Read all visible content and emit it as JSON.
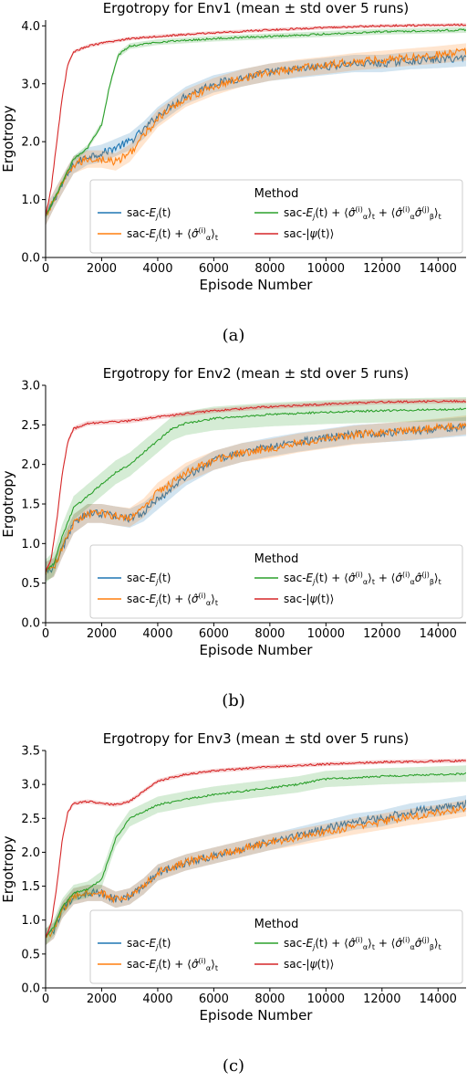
{
  "chart_data": [
    {
      "type": "line",
      "title": "Ergotropy for Env1 (mean ± std over 5 runs)",
      "xlabel": "Episode Number",
      "ylabel": "Ergotropy",
      "xlim": [
        0,
        15000
      ],
      "ylim": [
        0,
        4.1
      ],
      "xticks": [
        0,
        2000,
        4000,
        6000,
        8000,
        10000,
        12000,
        14000
      ],
      "yticks": [
        0.0,
        1.0,
        2.0,
        3.0,
        4.0
      ],
      "ytick_decimals": 1,
      "grid": false,
      "legend": {
        "title": "Method",
        "placement": "lower-right"
      },
      "caption": "(a)",
      "series": [
        {
          "name": "sac-$E_j(t)$",
          "label_main": "sac-",
          "label_sym": "E",
          "label_sub": "j",
          "label_rest": "(t)",
          "color": "#1f77b4",
          "x": [
            0,
            300,
            700,
            1000,
            1500,
            2000,
            2500,
            3000,
            3500,
            4000,
            5000,
            6000,
            7000,
            8000,
            9000,
            10000,
            11000,
            12000,
            13000,
            14000,
            15000
          ],
          "y": [
            0.7,
            1.0,
            1.35,
            1.6,
            1.75,
            1.8,
            1.9,
            2.0,
            2.2,
            2.45,
            2.8,
            3.0,
            3.1,
            3.2,
            3.25,
            3.3,
            3.35,
            3.35,
            3.4,
            3.42,
            3.45
          ],
          "band": 0.15
        },
        {
          "name": "sac-$E_j(t) + \\langle\\hat\\sigma_\\alpha^{(i)}\\rangle_t$",
          "color": "#ff7f0e",
          "x": [
            0,
            300,
            700,
            1000,
            1500,
            2000,
            2500,
            3000,
            3500,
            4000,
            5000,
            6000,
            7000,
            8000,
            9000,
            10000,
            11000,
            12000,
            13000,
            14000,
            15000
          ],
          "y": [
            0.7,
            1.0,
            1.35,
            1.6,
            1.7,
            1.7,
            1.65,
            1.8,
            2.1,
            2.4,
            2.75,
            2.95,
            3.1,
            3.2,
            3.27,
            3.32,
            3.38,
            3.42,
            3.46,
            3.5,
            3.55
          ],
          "band": 0.15
        },
        {
          "name": "sac-$E_j(t) + \\langle\\hat\\sigma_\\alpha^{(i)}\\rangle_t + \\langle\\hat\\sigma_\\alpha^{(i)}\\hat\\sigma_\\beta^{(j)}\\rangle_t$",
          "color": "#2ca02c",
          "x": [
            0,
            300,
            700,
            1000,
            1500,
            2000,
            2300,
            2600,
            3000,
            4000,
            5000,
            6000,
            8000,
            10000,
            12000,
            15000
          ],
          "y": [
            0.7,
            1.0,
            1.4,
            1.7,
            1.9,
            2.3,
            3.0,
            3.5,
            3.65,
            3.72,
            3.75,
            3.78,
            3.82,
            3.86,
            3.9,
            3.93
          ],
          "band": 0.05
        },
        {
          "name": "sac-$|\\psi(t)\\rangle$",
          "color": "#d62728",
          "x": [
            0,
            200,
            400,
            600,
            800,
            1000,
            1500,
            2000,
            3000,
            4000,
            6000,
            8000,
            10000,
            12000,
            15000
          ],
          "y": [
            0.7,
            1.2,
            2.0,
            2.8,
            3.35,
            3.55,
            3.65,
            3.7,
            3.78,
            3.82,
            3.88,
            3.93,
            3.97,
            4.0,
            4.02
          ],
          "band": 0.03
        }
      ]
    },
    {
      "type": "line",
      "title": "Ergotropy for Env2 (mean ± std over 5 runs)",
      "xlabel": "Episode Number",
      "ylabel": "Ergotropy",
      "xlim": [
        0,
        15000
      ],
      "ylim": [
        0,
        3.0
      ],
      "xticks": [
        0,
        2000,
        4000,
        6000,
        8000,
        10000,
        12000,
        14000
      ],
      "yticks": [
        0.0,
        0.5,
        1.0,
        1.5,
        2.0,
        2.5,
        3.0
      ],
      "ytick_decimals": 1,
      "grid": false,
      "legend": {
        "title": "Method",
        "placement": "lower-right"
      },
      "caption": "(b)",
      "series": [
        {
          "name": "sac-$E_j(t)$",
          "color": "#1f77b4",
          "x": [
            0,
            300,
            600,
            1000,
            1500,
            2000,
            2500,
            3000,
            3500,
            4000,
            5000,
            6000,
            7000,
            8000,
            9000,
            10000,
            11000,
            12000,
            13000,
            14000,
            15000
          ],
          "y": [
            0.65,
            0.7,
            0.95,
            1.25,
            1.38,
            1.38,
            1.35,
            1.32,
            1.4,
            1.55,
            1.85,
            2.05,
            2.15,
            2.22,
            2.28,
            2.33,
            2.38,
            2.4,
            2.42,
            2.45,
            2.48
          ],
          "band": 0.12
        },
        {
          "name": "sac-$E_j(t) + \\langle\\hat\\sigma_\\alpha^{(i)}\\rangle_t$",
          "color": "#ff7f0e",
          "x": [
            0,
            300,
            600,
            1000,
            1500,
            2000,
            2500,
            3000,
            3500,
            4000,
            5000,
            6000,
            7000,
            8000,
            9000,
            10000,
            11000,
            12000,
            13000,
            14000,
            15000
          ],
          "y": [
            0.65,
            0.7,
            0.95,
            1.25,
            1.38,
            1.38,
            1.35,
            1.33,
            1.45,
            1.65,
            1.9,
            2.05,
            2.15,
            2.2,
            2.27,
            2.32,
            2.37,
            2.4,
            2.43,
            2.46,
            2.5
          ],
          "band": 0.12
        },
        {
          "name": "sac-$E_j(t) + \\langle\\hat\\sigma_\\alpha^{(i)}\\rangle_t + \\langle\\hat\\sigma_\\alpha^{(i)}\\hat\\sigma_\\beta^{(j)}\\rangle_t$",
          "color": "#2ca02c",
          "x": [
            0,
            300,
            600,
            1000,
            1500,
            2000,
            2500,
            3000,
            3500,
            4000,
            4500,
            5000,
            6000,
            8000,
            10000,
            12000,
            15000
          ],
          "y": [
            0.65,
            0.75,
            1.1,
            1.45,
            1.6,
            1.75,
            1.9,
            2.0,
            2.15,
            2.3,
            2.45,
            2.52,
            2.58,
            2.63,
            2.66,
            2.68,
            2.7
          ],
          "band": 0.15
        },
        {
          "name": "sac-$|\\psi(t)\\rangle$",
          "color": "#d62728",
          "x": [
            0,
            200,
            400,
            600,
            800,
            1000,
            1500,
            2000,
            3000,
            4000,
            6000,
            8000,
            10000,
            12000,
            15000
          ],
          "y": [
            0.65,
            0.8,
            1.3,
            1.9,
            2.3,
            2.45,
            2.52,
            2.53,
            2.55,
            2.6,
            2.68,
            2.73,
            2.76,
            2.79,
            2.8
          ],
          "band": 0.03
        }
      ]
    },
    {
      "type": "line",
      "title": "Ergotropy for Env3 (mean ± std over 5 runs)",
      "xlabel": "Episode Number",
      "ylabel": "Ergotropy",
      "xlim": [
        0,
        15000
      ],
      "ylim": [
        0,
        3.5
      ],
      "xticks": [
        0,
        2000,
        4000,
        6000,
        8000,
        10000,
        12000,
        14000
      ],
      "yticks": [
        0.0,
        0.5,
        1.0,
        1.5,
        2.0,
        2.5,
        3.0,
        3.5
      ],
      "ytick_decimals": 1,
      "grid": false,
      "legend": {
        "title": "Method",
        "placement": "lower-right"
      },
      "caption": "(c)",
      "series": [
        {
          "name": "sac-$E_j(t)$",
          "color": "#1f77b4",
          "x": [
            0,
            300,
            600,
            1000,
            1500,
            2000,
            2500,
            3000,
            3500,
            4000,
            5000,
            6000,
            7000,
            8000,
            9000,
            10000,
            11000,
            12000,
            13000,
            14000,
            15000
          ],
          "y": [
            0.75,
            0.85,
            1.15,
            1.35,
            1.4,
            1.4,
            1.3,
            1.35,
            1.5,
            1.7,
            1.85,
            1.95,
            2.05,
            2.15,
            2.25,
            2.35,
            2.45,
            2.5,
            2.6,
            2.65,
            2.72
          ],
          "band": 0.12
        },
        {
          "name": "sac-$E_j(t) + \\langle\\hat\\sigma_\\alpha^{(i)}\\rangle_t$",
          "color": "#ff7f0e",
          "x": [
            0,
            300,
            600,
            1000,
            1500,
            2000,
            2500,
            3000,
            3500,
            4000,
            5000,
            6000,
            7000,
            8000,
            9000,
            10000,
            11000,
            12000,
            13000,
            14000,
            15000
          ],
          "y": [
            0.75,
            0.85,
            1.15,
            1.35,
            1.4,
            1.4,
            1.3,
            1.35,
            1.5,
            1.7,
            1.85,
            1.95,
            2.05,
            2.15,
            2.22,
            2.3,
            2.38,
            2.45,
            2.52,
            2.58,
            2.65
          ],
          "band": 0.12
        },
        {
          "name": "sac-$E_j(t) + \\langle\\hat\\sigma_\\alpha^{(i)}\\rangle_t + \\langle\\hat\\sigma_\\alpha^{(i)}\\hat\\sigma_\\beta^{(j)}\\rangle_t$",
          "color": "#2ca02c",
          "x": [
            0,
            300,
            600,
            1000,
            1500,
            2000,
            2500,
            3000,
            4000,
            5000,
            6000,
            7000,
            8000,
            9000,
            10000,
            12000,
            15000
          ],
          "y": [
            0.75,
            0.9,
            1.2,
            1.4,
            1.45,
            1.6,
            2.2,
            2.5,
            2.7,
            2.78,
            2.85,
            2.9,
            2.95,
            3.0,
            3.08,
            3.12,
            3.16
          ],
          "band": 0.12
        },
        {
          "name": "sac-$|\\psi(t)\\rangle$",
          "color": "#d62728",
          "x": [
            0,
            200,
            400,
            600,
            800,
            1000,
            1500,
            2000,
            2500,
            3000,
            3500,
            4000,
            5000,
            6000,
            8000,
            10000,
            12000,
            15000
          ],
          "y": [
            0.75,
            0.95,
            1.5,
            2.2,
            2.6,
            2.72,
            2.75,
            2.72,
            2.7,
            2.75,
            2.9,
            3.05,
            3.15,
            3.2,
            3.26,
            3.3,
            3.33,
            3.35
          ],
          "band": 0.03
        }
      ]
    }
  ]
}
